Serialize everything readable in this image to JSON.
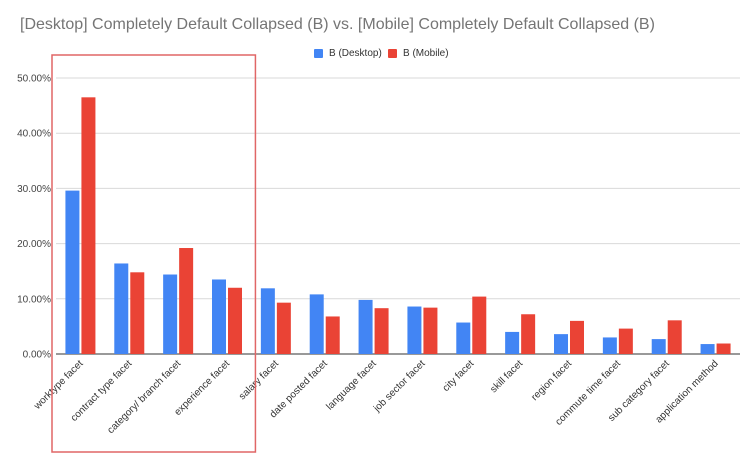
{
  "chart_data": {
    "type": "bar",
    "title": "[Desktop] Completely Default Collapsed (B) vs. [Mobile] Completely Default Collapsed (B)",
    "categories": [
      "worktype facet",
      "contract type facet",
      "category/ branch facet",
      "experience facet",
      "salary facet",
      "date posted facet",
      "language facet",
      "job sector facet",
      "city facet",
      "skill facet",
      "region facet",
      "commute time facet",
      "sub category facet",
      "application method"
    ],
    "series": [
      {
        "name": "B (Desktop)",
        "color": "#4285f4",
        "values": [
          29.6,
          16.4,
          14.4,
          13.5,
          11.9,
          10.8,
          9.8,
          8.6,
          5.7,
          4.0,
          3.6,
          3.0,
          2.7,
          1.8
        ]
      },
      {
        "name": "B (Mobile)",
        "color": "#ea4335",
        "values": [
          46.5,
          14.8,
          19.2,
          12.0,
          9.3,
          6.8,
          8.3,
          8.4,
          10.4,
          7.2,
          6.0,
          4.6,
          6.1,
          1.9
        ]
      }
    ],
    "ylim": [
      0,
      50
    ],
    "yticks": [
      "0.00%",
      "10.00%",
      "20.00%",
      "30.00%",
      "40.00%",
      "50.00%"
    ],
    "grid": true,
    "legend_position": "top",
    "annotations": [
      {
        "type": "highlight-box",
        "categories": [
          "worktype facet",
          "contract type facet",
          "category/ branch facet",
          "experience facet"
        ],
        "color": "#e06666"
      }
    ]
  }
}
